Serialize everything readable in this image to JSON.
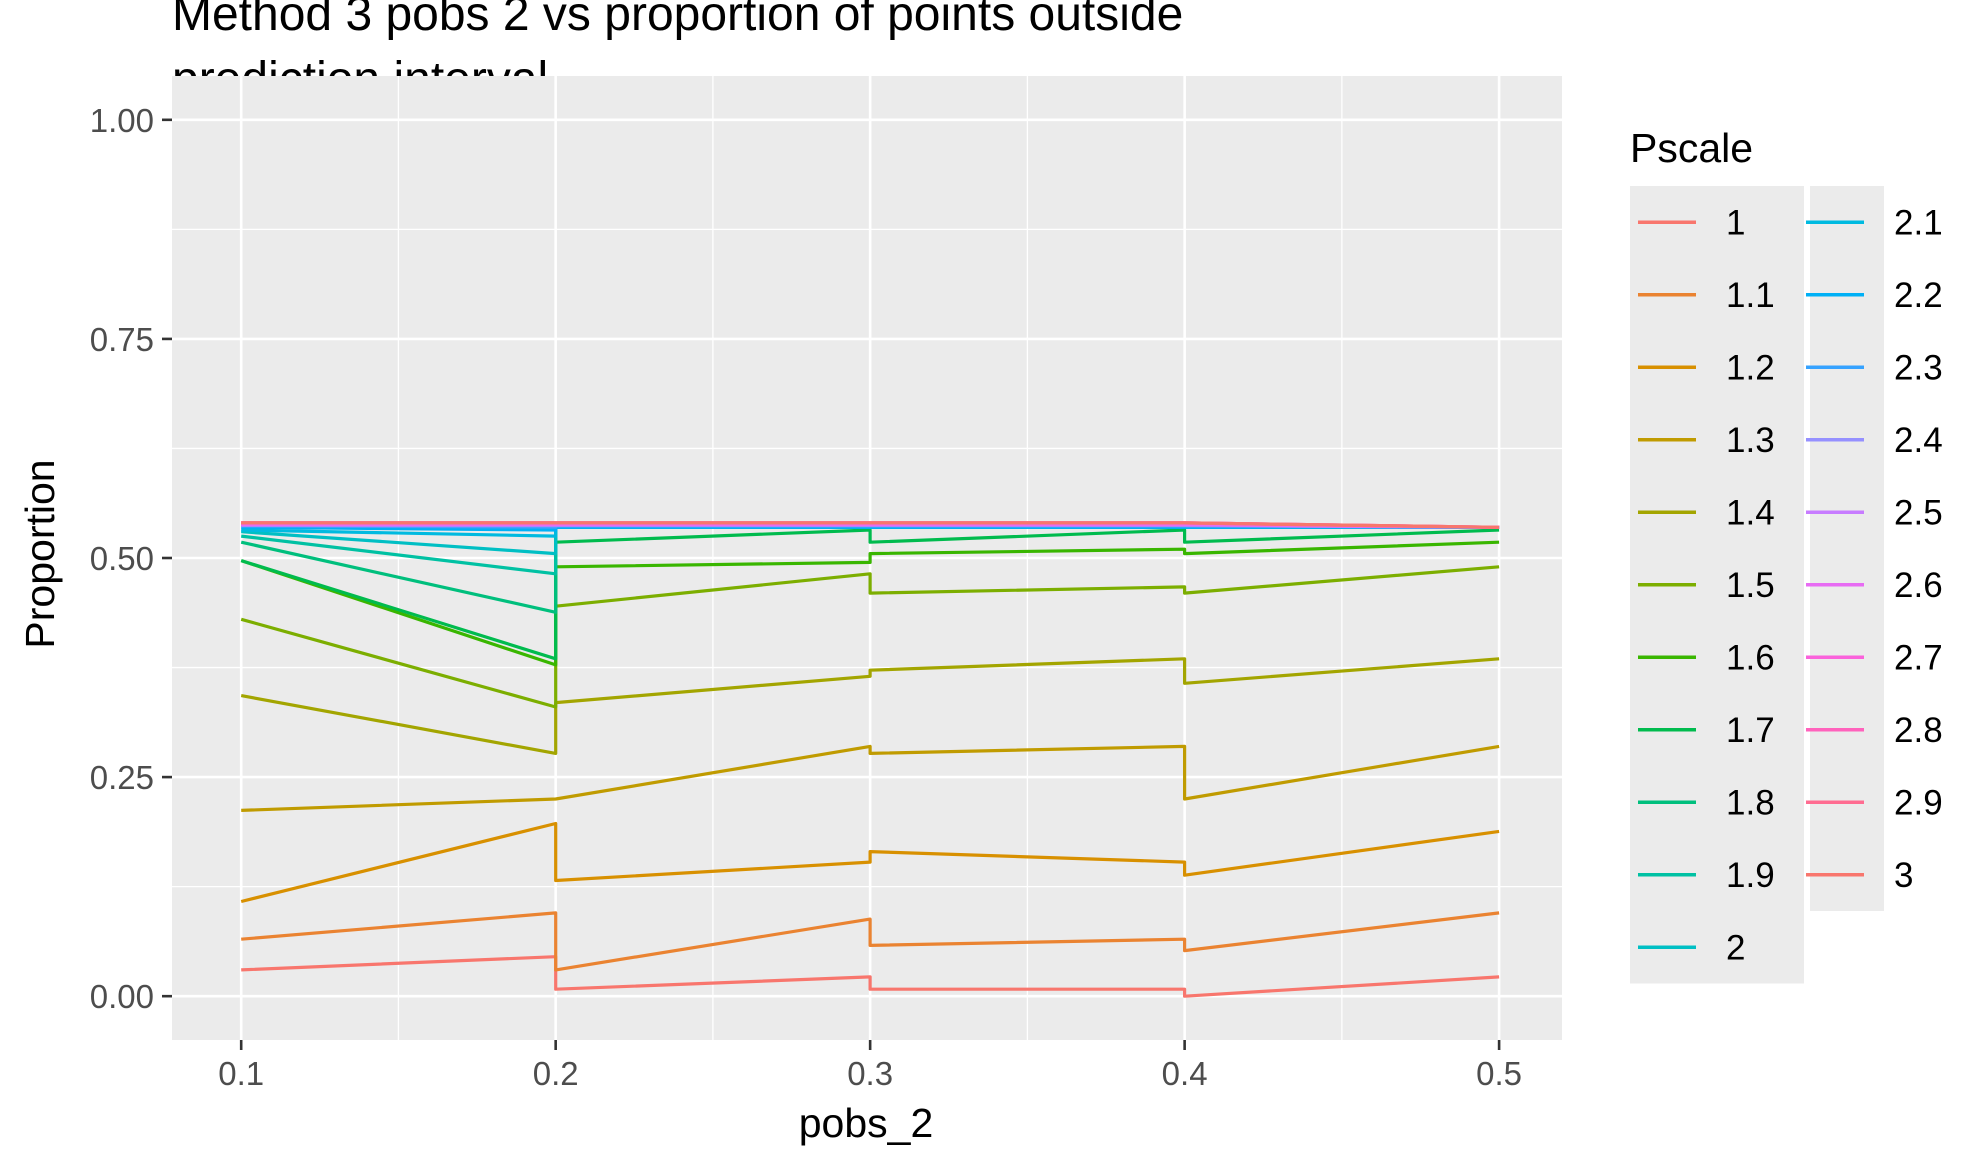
{
  "chart_data": {
    "type": "line",
    "title_line1": "Method 3 pobs 2 vs proportion of points outside",
    "title_line2": "prediction interval",
    "xlabel": "pobs_2",
    "ylabel": "Proportion",
    "x_ticks": [
      "0.1",
      "0.2",
      "0.3",
      "0.4",
      "0.5"
    ],
    "y_ticks": [
      "0.00",
      "0.25",
      "0.50",
      "0.75",
      "1.00"
    ],
    "xlim": [
      0.078,
      0.52
    ],
    "ylim": [
      -0.05,
      1.05
    ],
    "grid": true,
    "legend_title": "Pscale",
    "legend_position": "right",
    "x": [
      0.1,
      0.2,
      0.3,
      0.4,
      0.5
    ],
    "series": [
      {
        "name": "1",
        "color": "#F8766D",
        "values": [
          0.03,
          0.045,
          0.008,
          0.008,
          0.022
        ],
        "segments": [
          [
            0.03,
            0.045
          ],
          [
            0.008,
            0.022
          ],
          [
            0.008,
            0.008
          ],
          [
            0.0,
            0.022
          ]
        ]
      },
      {
        "name": "1.1",
        "color": "#EA8331",
        "values": [
          0.065,
          0.095,
          0.058,
          0.065,
          0.095
        ],
        "segments": [
          [
            0.065,
            0.095
          ],
          [
            0.03,
            0.088
          ],
          [
            0.058,
            0.065
          ],
          [
            0.052,
            0.095
          ]
        ]
      },
      {
        "name": "1.2",
        "color": "#D89000",
        "values": [
          0.108,
          0.197,
          0.165,
          0.153,
          0.188
        ],
        "segments": [
          [
            0.108,
            0.197
          ],
          [
            0.132,
            0.153
          ],
          [
            0.165,
            0.153
          ],
          [
            0.138,
            0.188
          ]
        ]
      },
      {
        "name": "1.3",
        "color": "#C09B00",
        "values": [
          0.212,
          0.225,
          0.285,
          0.285,
          0.285
        ],
        "segments": [
          [
            0.212,
            0.225
          ],
          [
            0.225,
            0.285
          ],
          [
            0.277,
            0.285
          ],
          [
            0.225,
            0.285
          ]
        ]
      },
      {
        "name": "1.4",
        "color": "#A3A500",
        "values": [
          0.343,
          0.277,
          0.365,
          0.385,
          0.385
        ],
        "segments": [
          [
            0.343,
            0.277
          ],
          [
            0.335,
            0.365
          ],
          [
            0.372,
            0.385
          ],
          [
            0.357,
            0.385
          ]
        ]
      },
      {
        "name": "1.5",
        "color": "#7CAE00",
        "values": [
          0.43,
          0.33,
          0.482,
          0.467,
          0.49
        ],
        "segments": [
          [
            0.43,
            0.33
          ],
          [
            0.445,
            0.482
          ],
          [
            0.46,
            0.467
          ],
          [
            0.46,
            0.49
          ]
        ]
      },
      {
        "name": "1.6",
        "color": "#39B600",
        "values": [
          0.497,
          0.378,
          0.495,
          0.51,
          0.518
        ],
        "segments": [
          [
            0.497,
            0.378
          ],
          [
            0.49,
            0.495
          ],
          [
            0.505,
            0.51
          ],
          [
            0.505,
            0.518
          ]
        ]
      },
      {
        "name": "1.7",
        "color": "#00BB4E",
        "values": [
          0.497,
          0.385,
          0.532,
          0.532,
          0.532
        ],
        "segments": [
          [
            0.497,
            0.385
          ],
          [
            0.518,
            0.532
          ],
          [
            0.518,
            0.532
          ],
          [
            0.518,
            0.532
          ]
        ]
      },
      {
        "name": "1.8",
        "color": "#00BF7D",
        "values": [
          0.518,
          0.438,
          0.535,
          0.535,
          0.535
        ],
        "segments": [
          [
            0.518,
            0.438
          ],
          [
            0.535,
            0.535
          ],
          [
            0.535,
            0.535
          ],
          [
            0.535,
            0.535
          ]
        ]
      },
      {
        "name": "1.9",
        "color": "#00C1A3",
        "values": [
          0.525,
          0.482,
          0.535,
          0.535,
          0.535
        ],
        "segments": [
          [
            0.525,
            0.482
          ],
          [
            0.535,
            0.535
          ],
          [
            0.535,
            0.535
          ],
          [
            0.535,
            0.535
          ]
        ]
      },
      {
        "name": "2",
        "color": "#00BFC4",
        "values": [
          0.53,
          0.505,
          0.535,
          0.535,
          0.535
        ],
        "segments": [
          [
            0.53,
            0.505
          ],
          [
            0.535,
            0.535
          ],
          [
            0.535,
            0.535
          ],
          [
            0.535,
            0.535
          ]
        ]
      },
      {
        "name": "2.1",
        "color": "#00BAE0",
        "values": [
          0.532,
          0.525,
          0.535,
          0.535,
          0.535
        ],
        "segments": [
          [
            0.532,
            0.525
          ],
          [
            0.535,
            0.535
          ],
          [
            0.535,
            0.535
          ],
          [
            0.535,
            0.535
          ]
        ]
      },
      {
        "name": "2.2",
        "color": "#00B0F6",
        "values": [
          0.535,
          0.532,
          0.535,
          0.535,
          0.535
        ],
        "segments": [
          [
            0.535,
            0.532
          ],
          [
            0.535,
            0.535
          ],
          [
            0.535,
            0.535
          ],
          [
            0.535,
            0.535
          ]
        ]
      },
      {
        "name": "2.3",
        "color": "#35A2FF",
        "values": [
          0.537,
          0.535,
          0.537,
          0.537,
          0.535
        ],
        "segments": [
          [
            0.537,
            0.535
          ],
          [
            0.537,
            0.537
          ],
          [
            0.537,
            0.537
          ],
          [
            0.537,
            0.535
          ]
        ]
      },
      {
        "name": "2.4",
        "color": "#9590FF",
        "values": [
          0.537,
          0.537,
          0.537,
          0.537,
          0.535
        ],
        "segments": [
          [
            0.537,
            0.537
          ],
          [
            0.537,
            0.537
          ],
          [
            0.537,
            0.537
          ],
          [
            0.537,
            0.535
          ]
        ]
      },
      {
        "name": "2.5",
        "color": "#C77CFF",
        "values": [
          0.538,
          0.538,
          0.538,
          0.538,
          0.535
        ],
        "segments": [
          [
            0.538,
            0.538
          ],
          [
            0.538,
            0.538
          ],
          [
            0.538,
            0.538
          ],
          [
            0.538,
            0.535
          ]
        ]
      },
      {
        "name": "2.6",
        "color": "#E76BF3",
        "values": [
          0.538,
          0.538,
          0.538,
          0.538,
          0.535
        ],
        "segments": [
          [
            0.538,
            0.538
          ],
          [
            0.538,
            0.538
          ],
          [
            0.538,
            0.538
          ],
          [
            0.538,
            0.535
          ]
        ]
      },
      {
        "name": "2.7",
        "color": "#FA62DB",
        "values": [
          0.54,
          0.54,
          0.54,
          0.54,
          0.535
        ],
        "segments": [
          [
            0.54,
            0.54
          ],
          [
            0.54,
            0.54
          ],
          [
            0.54,
            0.54
          ],
          [
            0.54,
            0.535
          ]
        ]
      },
      {
        "name": "2.8",
        "color": "#FF62BC",
        "values": [
          0.54,
          0.54,
          0.54,
          0.54,
          0.535
        ],
        "segments": [
          [
            0.54,
            0.54
          ],
          [
            0.54,
            0.54
          ],
          [
            0.54,
            0.54
          ],
          [
            0.54,
            0.535
          ]
        ]
      },
      {
        "name": "2.9",
        "color": "#FF6C91",
        "values": [
          0.54,
          0.54,
          0.54,
          0.54,
          0.535
        ],
        "segments": [
          [
            0.54,
            0.54
          ],
          [
            0.54,
            0.54
          ],
          [
            0.54,
            0.54
          ],
          [
            0.54,
            0.535
          ]
        ]
      },
      {
        "name": "3",
        "color": "#F8766D",
        "values": [
          0.54,
          0.54,
          0.54,
          0.54,
          0.535
        ],
        "segments": [
          [
            0.54,
            0.54
          ],
          [
            0.54,
            0.54
          ],
          [
            0.54,
            0.54
          ],
          [
            0.54,
            0.535
          ]
        ]
      }
    ]
  }
}
